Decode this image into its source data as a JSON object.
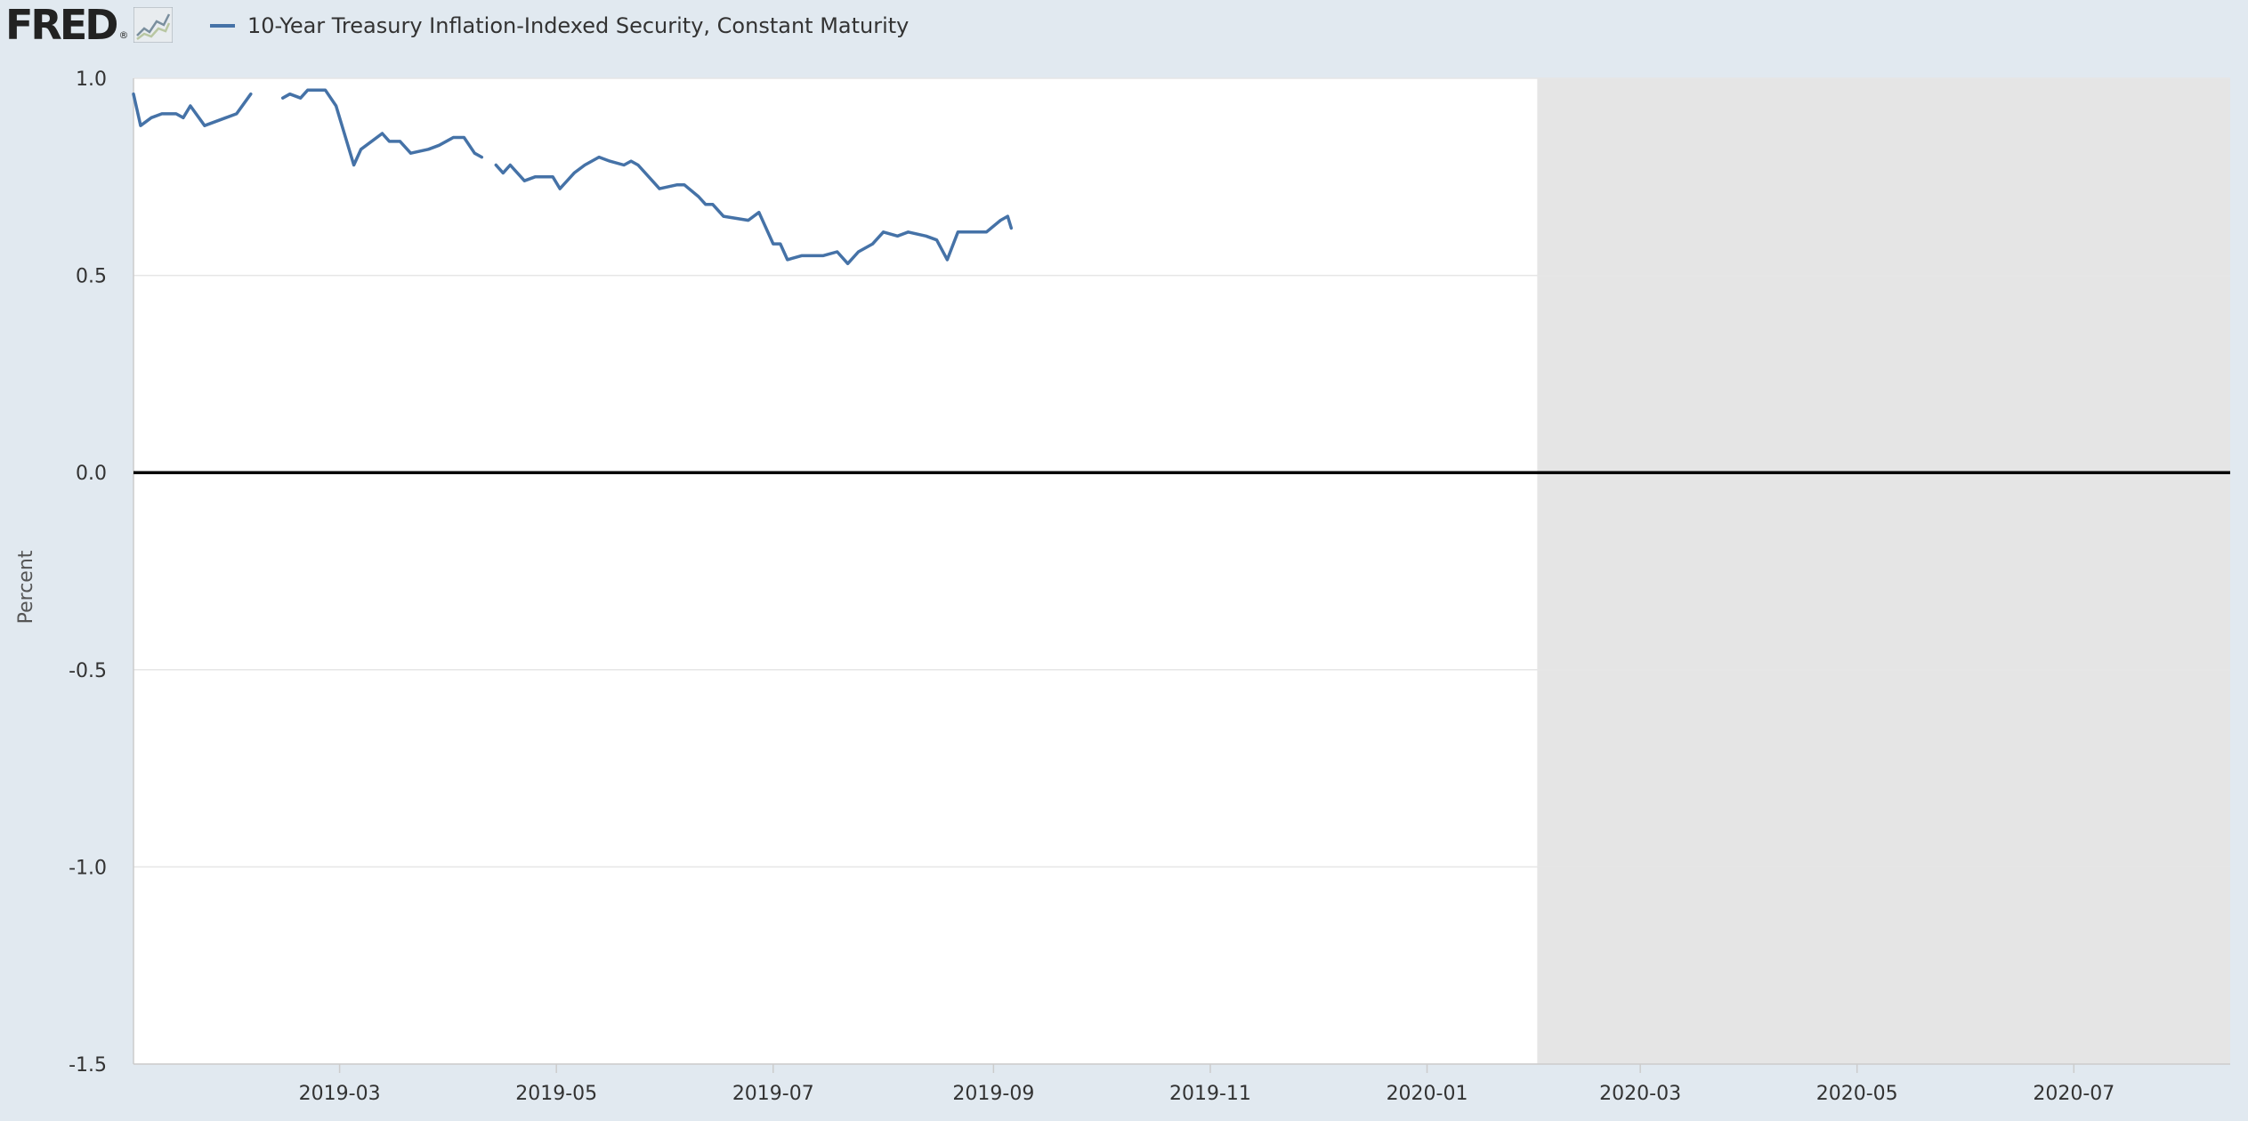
{
  "logo": {
    "text": "FRED",
    "icon": "line-chart-icon"
  },
  "legend": {
    "label": "10-Year Treasury Inflation-Indexed Security, Constant Maturity",
    "color": "#4572a7"
  },
  "chart_data": {
    "type": "line",
    "title": "",
    "xlabel": "",
    "ylabel": "Percent",
    "ylim": [
      -1.5,
      1.0
    ],
    "xlim": [
      "2019-01-02",
      "2020-08-14"
    ],
    "yticks": [
      "1.0",
      "0.5",
      "0.0",
      "-0.5",
      "-1.0",
      "-1.5"
    ],
    "xticks": [
      "2019-03",
      "2019-05",
      "2019-07",
      "2019-09",
      "2019-11",
      "2020-01",
      "2020-03",
      "2020-05",
      "2020-07"
    ],
    "grid": true,
    "zero_line": true,
    "recession_shading": {
      "start": "2020-02-01",
      "end": "2020-08-14",
      "color": "#e5e5e5"
    },
    "series": [
      {
        "values": [
          [
            [
              "2019-01-02",
              0.96
            ],
            [
              "2019-01-04",
              0.88
            ],
            [
              "2019-01-07",
              0.9
            ],
            [
              "2019-01-10",
              0.91
            ],
            [
              "2019-01-14",
              0.91
            ],
            [
              "2019-01-16",
              0.9
            ],
            [
              "2019-01-18",
              0.93
            ],
            [
              "2019-01-22",
              0.88
            ],
            [
              "2019-01-28",
              0.9
            ],
            [
              "2019-01-31",
              0.91
            ],
            [
              "2019-02-04",
              0.96
            ]
          ],
          [
            [
              "2019-02-13",
              0.95
            ],
            [
              "2019-02-15",
              0.96
            ],
            [
              "2019-02-18",
              0.95
            ],
            [
              "2019-02-20",
              0.97
            ],
            [
              "2019-02-25",
              0.97
            ],
            [
              "2019-02-28",
              0.93
            ],
            [
              "2019-03-05",
              0.78
            ],
            [
              "2019-03-07",
              0.82
            ],
            [
              "2019-03-13",
              0.86
            ],
            [
              "2019-03-15",
              0.84
            ],
            [
              "2019-03-18",
              0.84
            ],
            [
              "2019-03-21",
              0.81
            ],
            [
              "2019-03-26",
              0.82
            ],
            [
              "2019-03-29",
              0.83
            ],
            [
              "2019-04-02",
              0.85
            ],
            [
              "2019-04-05",
              0.85
            ],
            [
              "2019-04-08",
              0.81
            ],
            [
              "2019-04-10",
              0.8
            ]
          ],
          [
            [
              "2019-04-14",
              0.78
            ],
            [
              "2019-04-16",
              0.76
            ],
            [
              "2019-04-18",
              0.78
            ],
            [
              "2019-04-22",
              0.74
            ],
            [
              "2019-04-25",
              0.75
            ],
            [
              "2019-04-30",
              0.75
            ],
            [
              "2019-05-02",
              0.72
            ],
            [
              "2019-05-06",
              0.76
            ],
            [
              "2019-05-09",
              0.78
            ],
            [
              "2019-05-13",
              0.8
            ],
            [
              "2019-05-16",
              0.79
            ],
            [
              "2019-05-20",
              0.78
            ],
            [
              "2019-05-22",
              0.79
            ],
            [
              "2019-05-24",
              0.78
            ],
            [
              "2019-05-28",
              0.74
            ],
            [
              "2019-05-30",
              0.72
            ],
            [
              "2019-06-04",
              0.73
            ],
            [
              "2019-06-06",
              0.73
            ],
            [
              "2019-06-10",
              0.7
            ],
            [
              "2019-06-12",
              0.68
            ],
            [
              "2019-06-14",
              0.68
            ],
            [
              "2019-06-17",
              0.65
            ],
            [
              "2019-06-24",
              0.64
            ],
            [
              "2019-06-27",
              0.66
            ],
            [
              "2019-07-01",
              0.58
            ],
            [
              "2019-07-03",
              0.58
            ],
            [
              "2019-07-05",
              0.54
            ],
            [
              "2019-07-09",
              0.55
            ],
            [
              "2019-07-15",
              0.55
            ],
            [
              "2019-07-19",
              0.56
            ],
            [
              "2019-07-22",
              0.53
            ],
            [
              "2019-07-25",
              0.56
            ],
            [
              "2019-07-29",
              0.58
            ],
            [
              "2019-08-01",
              0.61
            ],
            [
              "2019-08-05",
              0.6
            ],
            [
              "2019-08-08",
              0.61
            ],
            [
              "2019-08-13",
              0.6
            ],
            [
              "2019-08-16",
              0.59
            ],
            [
              "2019-08-19",
              0.54
            ],
            [
              "2019-08-22",
              0.61
            ],
            [
              "2019-08-28",
              0.61
            ],
            [
              "2019-08-30",
              0.61
            ],
            [
              "2019-09-03",
              0.64
            ],
            [
              "2019-09-05",
              0.65
            ],
            [
              "2019-09-06",
              0.62
            ]
          ]
        ]
      }
    ]
  }
}
